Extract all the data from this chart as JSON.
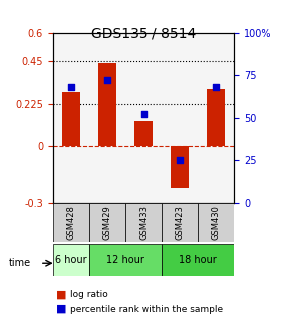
{
  "title": "GDS135 / 8514",
  "samples": [
    "GSM428",
    "GSM429",
    "GSM433",
    "GSM423",
    "GSM430"
  ],
  "log_ratios": [
    0.285,
    0.44,
    0.13,
    -0.22,
    0.3
  ],
  "percentile_ranks": [
    0.68,
    0.72,
    0.52,
    0.25,
    0.68
  ],
  "time_groups": [
    {
      "label": "6 hour",
      "span": [
        0,
        1
      ],
      "color": "#ccffcc"
    },
    {
      "label": "12 hour",
      "span": [
        1,
        3
      ],
      "color": "#66dd66"
    },
    {
      "label": "18 hour",
      "span": [
        3,
        5
      ],
      "color": "#44cc44"
    }
  ],
  "ylim_left": [
    -0.3,
    0.6
  ],
  "ylim_right": [
    0,
    100
  ],
  "yticks_left": [
    -0.3,
    0,
    0.225,
    0.45,
    0.6
  ],
  "ytick_labels_left": [
    "-0.3",
    "0",
    "0.225",
    "0.45",
    "0.6"
  ],
  "yticks_right": [
    0,
    25,
    50,
    75,
    100
  ],
  "ytick_labels_right": [
    "0",
    "25",
    "50",
    "75",
    "100%"
  ],
  "hlines": [
    0.225,
    0.45
  ],
  "bar_color": "#cc2200",
  "dot_color": "#0000cc",
  "zero_line_color": "#cc2200",
  "background_color": "#f5f5f5",
  "legend_bar_label": "log ratio",
  "legend_dot_label": "percentile rank within the sample",
  "time_label": "time"
}
